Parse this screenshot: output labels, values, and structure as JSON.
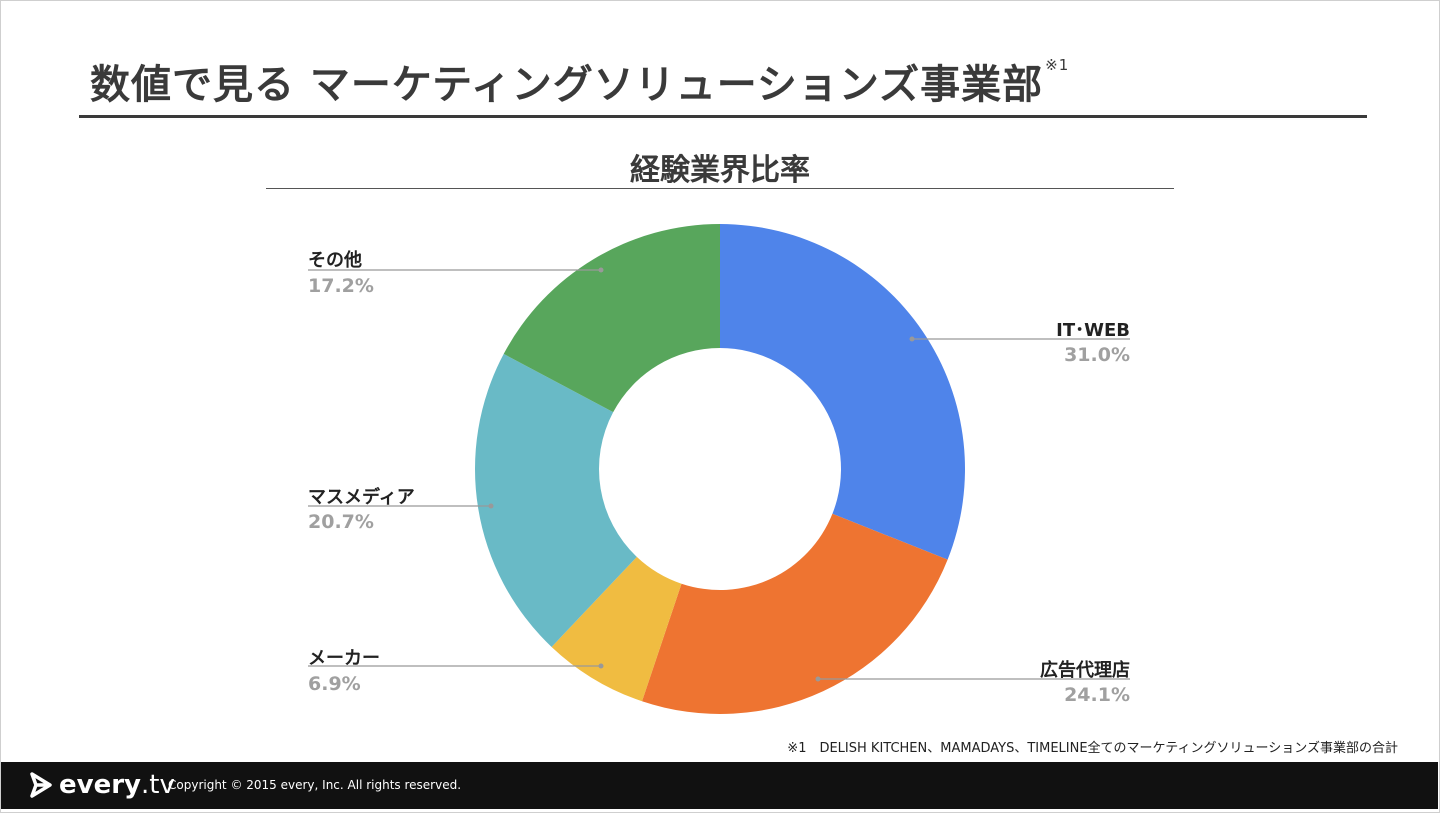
{
  "slide": {
    "title": "数値で見る マーケティングソリューションズ事業部",
    "title_note_mark": "※1",
    "footnote": "※1　DELISH KITCHEN、MAMADAYS、TIMELINE全てのマーケティングソリューションズ事業部の合計",
    "footer": {
      "logo_text": "every",
      "logo_suffix": ".tv",
      "copyright": "Copyright © 2015 every, Inc. All rights reserved."
    }
  },
  "chart_data": {
    "type": "pie",
    "subtype": "donut",
    "title": "経験業界比率",
    "categories": [
      "IT･WEB",
      "広告代理店",
      "メーカー",
      "マスメディア",
      "その他"
    ],
    "values": [
      31.0,
      24.1,
      6.9,
      20.7,
      17.2
    ],
    "labels": [
      "31.0%",
      "24.1%",
      "6.9%",
      "20.7%",
      "17.2%"
    ],
    "colors": [
      "#4F84EA",
      "#EE7431",
      "#F0BC41",
      "#69BAC6",
      "#58A65C"
    ],
    "start": "top",
    "direction": "clockwise"
  }
}
